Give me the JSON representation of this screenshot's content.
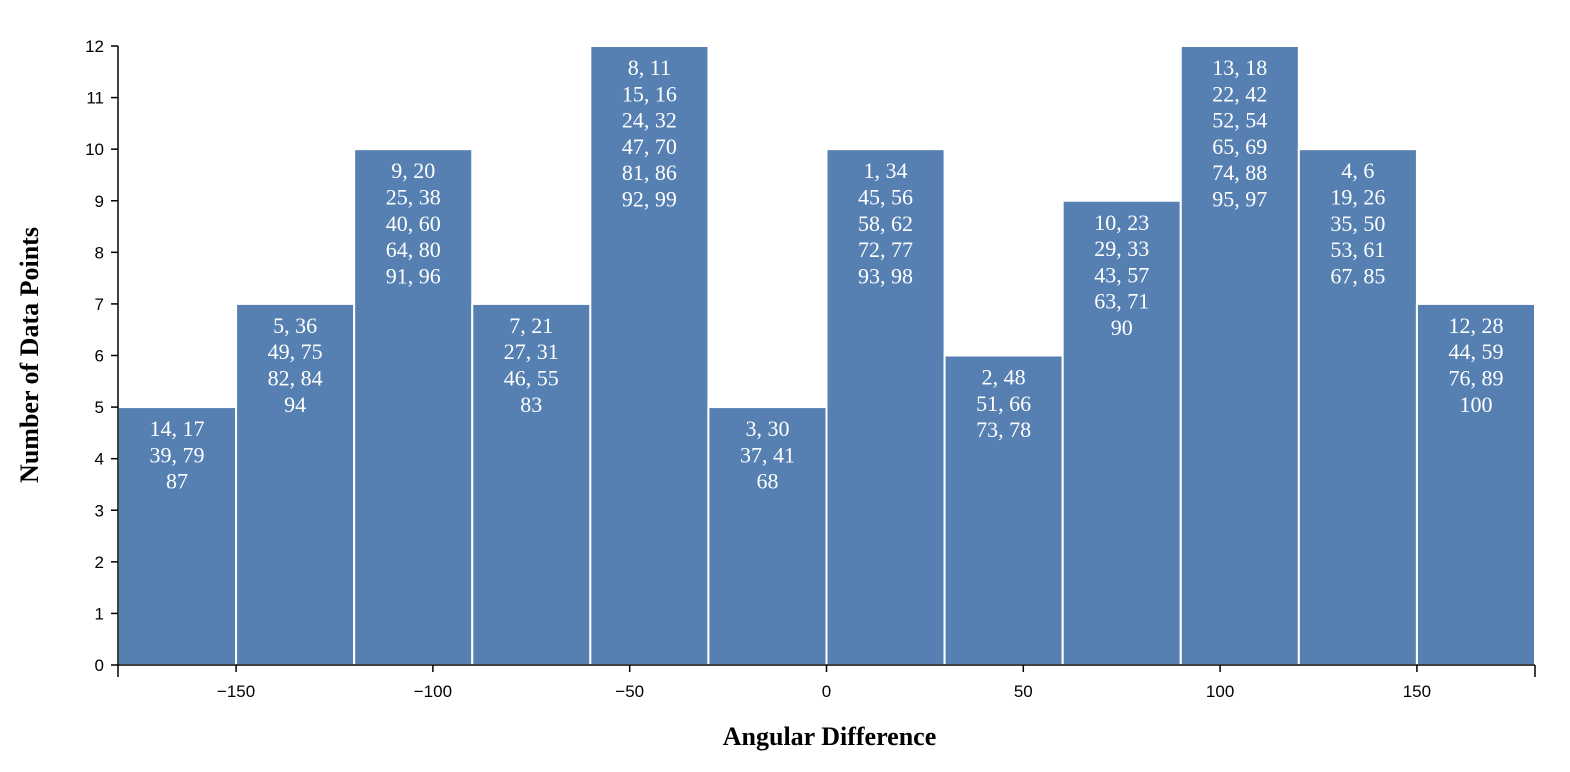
{
  "chart_data": {
    "type": "bar",
    "subtype": "histogram",
    "xlabel": "Angular Difference",
    "ylabel": "Number of Data Points",
    "xlim": [
      -180,
      180
    ],
    "ylim": [
      0,
      12
    ],
    "x_ticks": [
      -150,
      -100,
      -50,
      0,
      50,
      100,
      150
    ],
    "y_ticks": [
      0,
      1,
      2,
      3,
      4,
      5,
      6,
      7,
      8,
      9,
      10,
      11,
      12
    ],
    "x_tick_labels": [
      "−150",
      "−100",
      "−50",
      "0",
      "50",
      "100",
      "150"
    ],
    "grid": false,
    "bar_color": "#5580b1",
    "bins": [
      {
        "x0": -180,
        "x1": -150,
        "value": 5,
        "labels": [
          "14, 17",
          "39, 79",
          "87"
        ]
      },
      {
        "x0": -150,
        "x1": -120,
        "value": 7,
        "labels": [
          "5, 36",
          "49, 75",
          "82, 84",
          "94"
        ]
      },
      {
        "x0": -120,
        "x1": -90,
        "value": 10,
        "labels": [
          "9, 20",
          "25, 38",
          "40, 60",
          "64, 80",
          "91, 96"
        ]
      },
      {
        "x0": -90,
        "x1": -60,
        "value": 7,
        "labels": [
          "7, 21",
          "27, 31",
          "46, 55",
          "83"
        ]
      },
      {
        "x0": -60,
        "x1": -30,
        "value": 12,
        "labels": [
          "8, 11",
          "15, 16",
          "24, 32",
          "47, 70",
          "81, 86",
          "92, 99"
        ]
      },
      {
        "x0": -30,
        "x1": 0,
        "value": 5,
        "labels": [
          "3, 30",
          "37, 41",
          "68"
        ]
      },
      {
        "x0": 0,
        "x1": 30,
        "value": 10,
        "labels": [
          "1, 34",
          "45, 56",
          "58, 62",
          "72, 77",
          "93, 98"
        ]
      },
      {
        "x0": 30,
        "x1": 60,
        "value": 6,
        "labels": [
          "2, 48",
          "51, 66",
          "73, 78"
        ]
      },
      {
        "x0": 60,
        "x1": 90,
        "value": 9,
        "labels": [
          "10, 23",
          "29, 33",
          "43, 57",
          "63, 71",
          "90"
        ]
      },
      {
        "x0": 90,
        "x1": 120,
        "value": 12,
        "labels": [
          "13, 18",
          "22, 42",
          "52, 54",
          "65, 69",
          "74, 88",
          "95, 97"
        ]
      },
      {
        "x0": 120,
        "x1": 150,
        "value": 10,
        "labels": [
          "4, 6",
          "19, 26",
          "35, 50",
          "53, 61",
          "67, 85"
        ]
      },
      {
        "x0": 150,
        "x1": 180,
        "value": 7,
        "labels": [
          "12, 28",
          "44, 59",
          "76, 89",
          "100"
        ]
      }
    ]
  }
}
